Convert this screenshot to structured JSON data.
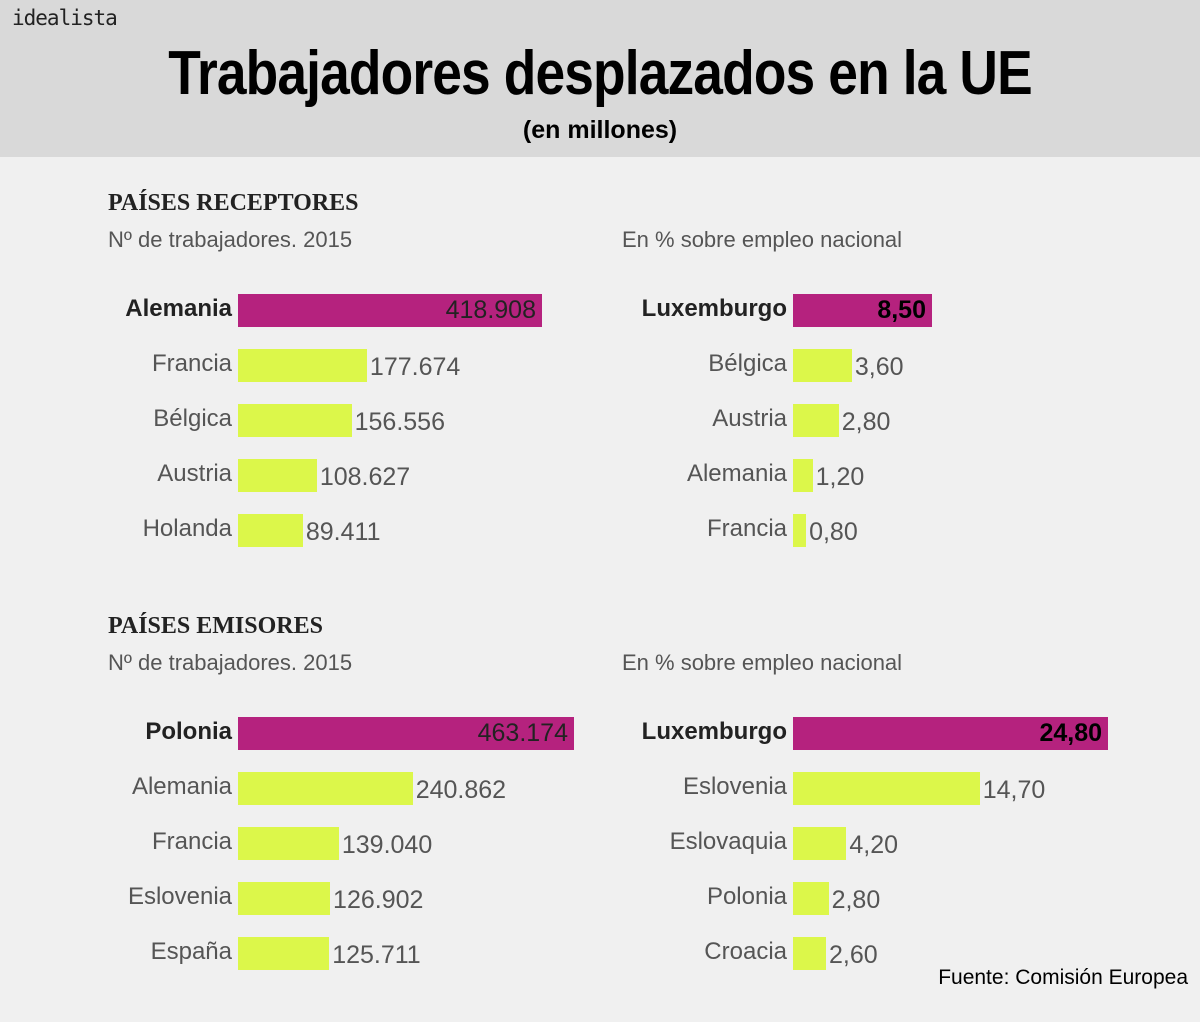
{
  "header": {
    "logo": "idealista",
    "title": "Trabajadores desplazados en la UE",
    "subtitle": "(en millones)"
  },
  "sections": {
    "receptores": {
      "title": "PAÍSES RECEPTORES",
      "left_subtitle": "Nº de trabajadores. 2015",
      "right_subtitle": "En % sobre empleo nacional"
    },
    "emisores": {
      "title": "PAÍSES EMISORES",
      "left_subtitle": "Nº de trabajadores. 2015",
      "right_subtitle": "En % sobre empleo nacional"
    }
  },
  "colors": {
    "highlight": "#b5227e",
    "bar": "#dcf74a"
  },
  "source": "Fuente: Comisión Europea",
  "chart_data": [
    {
      "type": "bar",
      "orientation": "horizontal",
      "title": "PAÍSES RECEPTORES",
      "subtitle": "Nº de trabajadores. 2015",
      "categories": [
        "Alemania",
        "Francia",
        "Bélgica",
        "Austria",
        "Holanda"
      ],
      "values": [
        418908,
        177674,
        156556,
        108627,
        89411
      ],
      "labels": [
        "418.908",
        "177.674",
        "156.556",
        "108.627",
        "89.411"
      ]
    },
    {
      "type": "bar",
      "orientation": "horizontal",
      "title": "PAÍSES RECEPTORES",
      "subtitle": "En % sobre empleo nacional",
      "categories": [
        "Luxemburgo",
        "Bélgica",
        "Austria",
        "Alemania",
        "Francia"
      ],
      "values": [
        8.5,
        3.6,
        2.8,
        1.2,
        0.8
      ],
      "labels": [
        "8,50",
        "3,60",
        "2,80",
        "1,20",
        "0,80"
      ]
    },
    {
      "type": "bar",
      "orientation": "horizontal",
      "title": "PAÍSES EMISORES",
      "subtitle": "Nº de trabajadores. 2015",
      "categories": [
        "Polonia",
        "Alemania",
        "Francia",
        "Eslovenia",
        "España"
      ],
      "values": [
        463174,
        240862,
        139040,
        126902,
        125711
      ],
      "labels": [
        "463.174",
        "240.862",
        "139.040",
        "126.902",
        "125.711"
      ]
    },
    {
      "type": "bar",
      "orientation": "horizontal",
      "title": "PAÍSES EMISORES",
      "subtitle": "En % sobre empleo nacional",
      "categories": [
        "Luxemburgo",
        "Eslovenia",
        "Eslovaquia",
        "Polonia",
        "Croacia"
      ],
      "values": [
        24.8,
        14.7,
        4.2,
        2.8,
        2.6
      ],
      "labels": [
        "24,80",
        "14,70",
        "4,20",
        "2,80",
        "2,60"
      ]
    }
  ]
}
